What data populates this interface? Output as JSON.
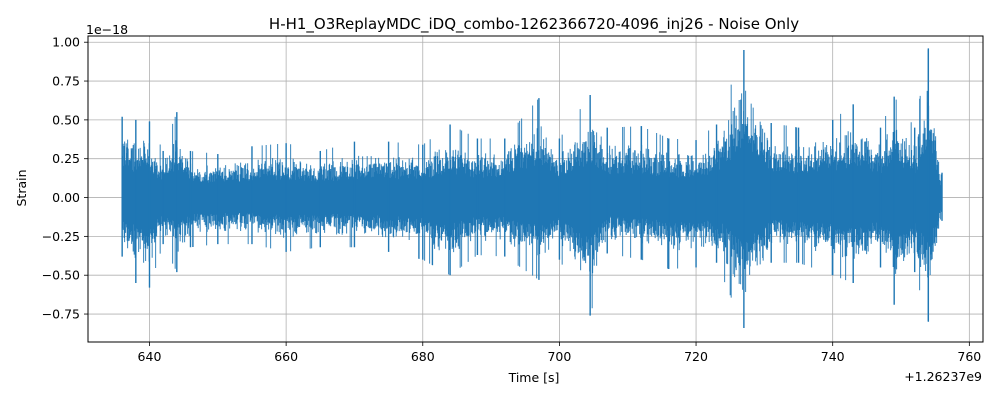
{
  "chart_data": {
    "type": "line",
    "title": "H-H1_O3ReplayMDC_iDQ_combo-1262366720-4096_inj26 - Noise Only",
    "xlabel": "Time [s]",
    "ylabel": "Strain",
    "x_offset_label": "+1.26237e9",
    "y_scale_label": "1e−18",
    "xlim": [
      631,
      762
    ],
    "ylim": [
      -0.93,
      1.04
    ],
    "x_ticks": [
      640,
      660,
      680,
      700,
      720,
      740,
      760
    ],
    "y_ticks": [
      -0.75,
      -0.5,
      -0.25,
      0.0,
      0.25,
      0.5,
      0.75,
      1.0
    ],
    "x_tick_labels": [
      "640",
      "660",
      "680",
      "700",
      "720",
      "740",
      "760"
    ],
    "y_tick_labels": [
      "−0.75",
      "−0.50",
      "−0.25",
      "0.00",
      "0.25",
      "0.50",
      "0.75",
      "1.00"
    ],
    "grid": true,
    "series": [
      {
        "color": "#1f77b4",
        "x_range": [
          636.0,
          756.0
        ],
        "envelope": [
          {
            "x": 636.0,
            "upper": 0.52,
            "lower": -0.38
          },
          {
            "x": 638.0,
            "upper": 0.5,
            "lower": -0.55
          },
          {
            "x": 640.0,
            "upper": 0.49,
            "lower": -0.58
          },
          {
            "x": 642.0,
            "upper": 0.3,
            "lower": -0.3
          },
          {
            "x": 644.0,
            "upper": 0.55,
            "lower": -0.48
          },
          {
            "x": 646.0,
            "upper": 0.3,
            "lower": -0.32
          },
          {
            "x": 650.0,
            "upper": 0.28,
            "lower": -0.3
          },
          {
            "x": 655.0,
            "upper": 0.33,
            "lower": -0.3
          },
          {
            "x": 660.0,
            "upper": 0.35,
            "lower": -0.35
          },
          {
            "x": 665.0,
            "upper": 0.3,
            "lower": -0.32
          },
          {
            "x": 670.0,
            "upper": 0.36,
            "lower": -0.32
          },
          {
            "x": 675.0,
            "upper": 0.36,
            "lower": -0.35
          },
          {
            "x": 680.0,
            "upper": 0.34,
            "lower": -0.4
          },
          {
            "x": 684.0,
            "upper": 0.47,
            "lower": -0.5
          },
          {
            "x": 688.0,
            "upper": 0.38,
            "lower": -0.37
          },
          {
            "x": 692.0,
            "upper": 0.38,
            "lower": -0.38
          },
          {
            "x": 697.0,
            "upper": 0.64,
            "lower": -0.53
          },
          {
            "x": 700.0,
            "upper": 0.38,
            "lower": -0.4
          },
          {
            "x": 704.5,
            "upper": 0.66,
            "lower": -0.76
          },
          {
            "x": 707.0,
            "upper": 0.45,
            "lower": -0.36
          },
          {
            "x": 712.0,
            "upper": 0.46,
            "lower": -0.4
          },
          {
            "x": 716.0,
            "upper": 0.38,
            "lower": -0.46
          },
          {
            "x": 720.0,
            "upper": 0.37,
            "lower": -0.45
          },
          {
            "x": 723.0,
            "upper": 0.47,
            "lower": -0.42
          },
          {
            "x": 727.0,
            "upper": 0.95,
            "lower": -0.84
          },
          {
            "x": 731.0,
            "upper": 0.48,
            "lower": -0.42
          },
          {
            "x": 735.0,
            "upper": 0.45,
            "lower": -0.42
          },
          {
            "x": 740.0,
            "upper": 0.5,
            "lower": -0.5
          },
          {
            "x": 743.0,
            "upper": 0.6,
            "lower": -0.55
          },
          {
            "x": 747.0,
            "upper": 0.45,
            "lower": -0.45
          },
          {
            "x": 749.0,
            "upper": 0.65,
            "lower": -0.69
          },
          {
            "x": 752.0,
            "upper": 0.45,
            "lower": -0.48
          },
          {
            "x": 754.0,
            "upper": 0.96,
            "lower": -0.8
          },
          {
            "x": 756.0,
            "upper": 0.16,
            "lower": -0.15
          }
        ]
      }
    ]
  }
}
